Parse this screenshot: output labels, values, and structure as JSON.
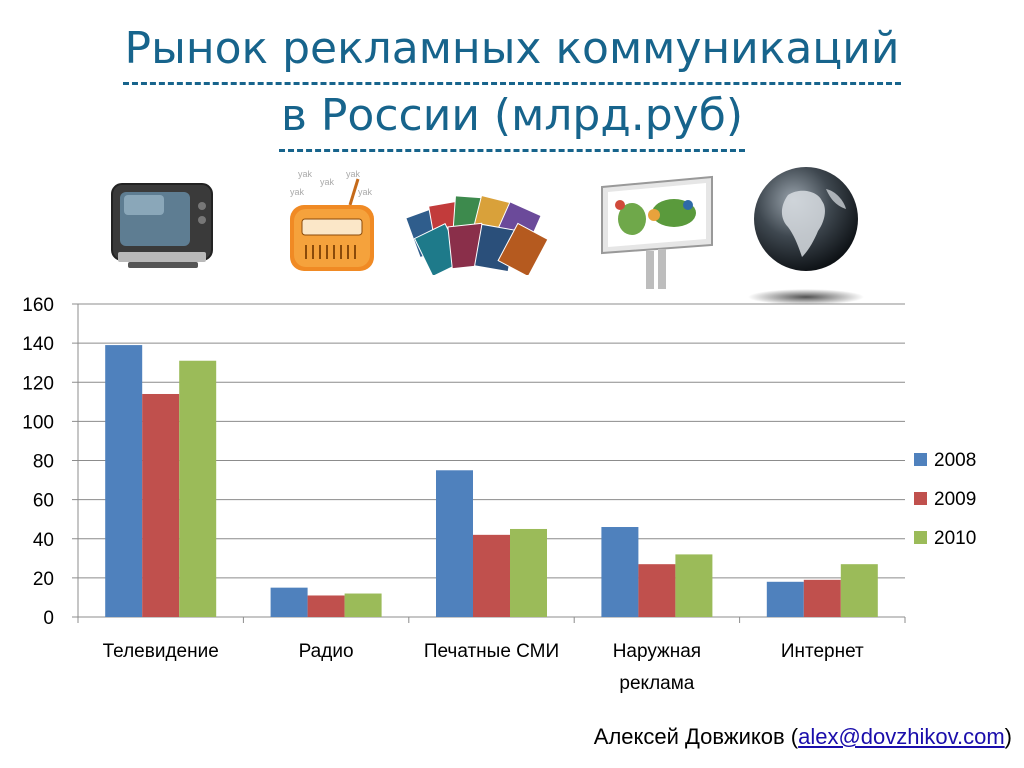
{
  "title": {
    "line1": "Рынок рекламных коммуникаций",
    "line2": "в России (млрд.руб)"
  },
  "icons": [
    {
      "name": "tv-icon"
    },
    {
      "name": "radio-icon"
    },
    {
      "name": "magazines-icon"
    },
    {
      "name": "billboard-icon"
    },
    {
      "name": "globe-icon"
    }
  ],
  "chart_data": {
    "type": "bar",
    "categories": [
      "Телевидение",
      "Радио",
      "Печатные СМИ",
      "Наружная реклама",
      "Интернет"
    ],
    "category_lines": [
      [
        "Телевидение"
      ],
      [
        "Радио"
      ],
      [
        "Печатные СМИ"
      ],
      [
        "Наружная",
        "реклама"
      ],
      [
        "Интернет"
      ]
    ],
    "series": [
      {
        "name": "2008",
        "color": "#4f81bd",
        "values": [
          139,
          15,
          75,
          46,
          18
        ]
      },
      {
        "name": "2009",
        "color": "#c0504d",
        "values": [
          114,
          11,
          42,
          27,
          19
        ]
      },
      {
        "name": "2010",
        "color": "#9bbb59",
        "values": [
          131,
          12,
          45,
          32,
          27
        ]
      }
    ],
    "ylim": [
      0,
      160
    ],
    "yticks": [
      "0",
      "20",
      "40",
      "60",
      "80",
      "100",
      "120",
      "140",
      "160"
    ],
    "grid": true,
    "legend": "right"
  },
  "author": {
    "prefix": "Алексей Довжиков (",
    "email": "alex@dovzhikov.com",
    "suffix": ")"
  }
}
